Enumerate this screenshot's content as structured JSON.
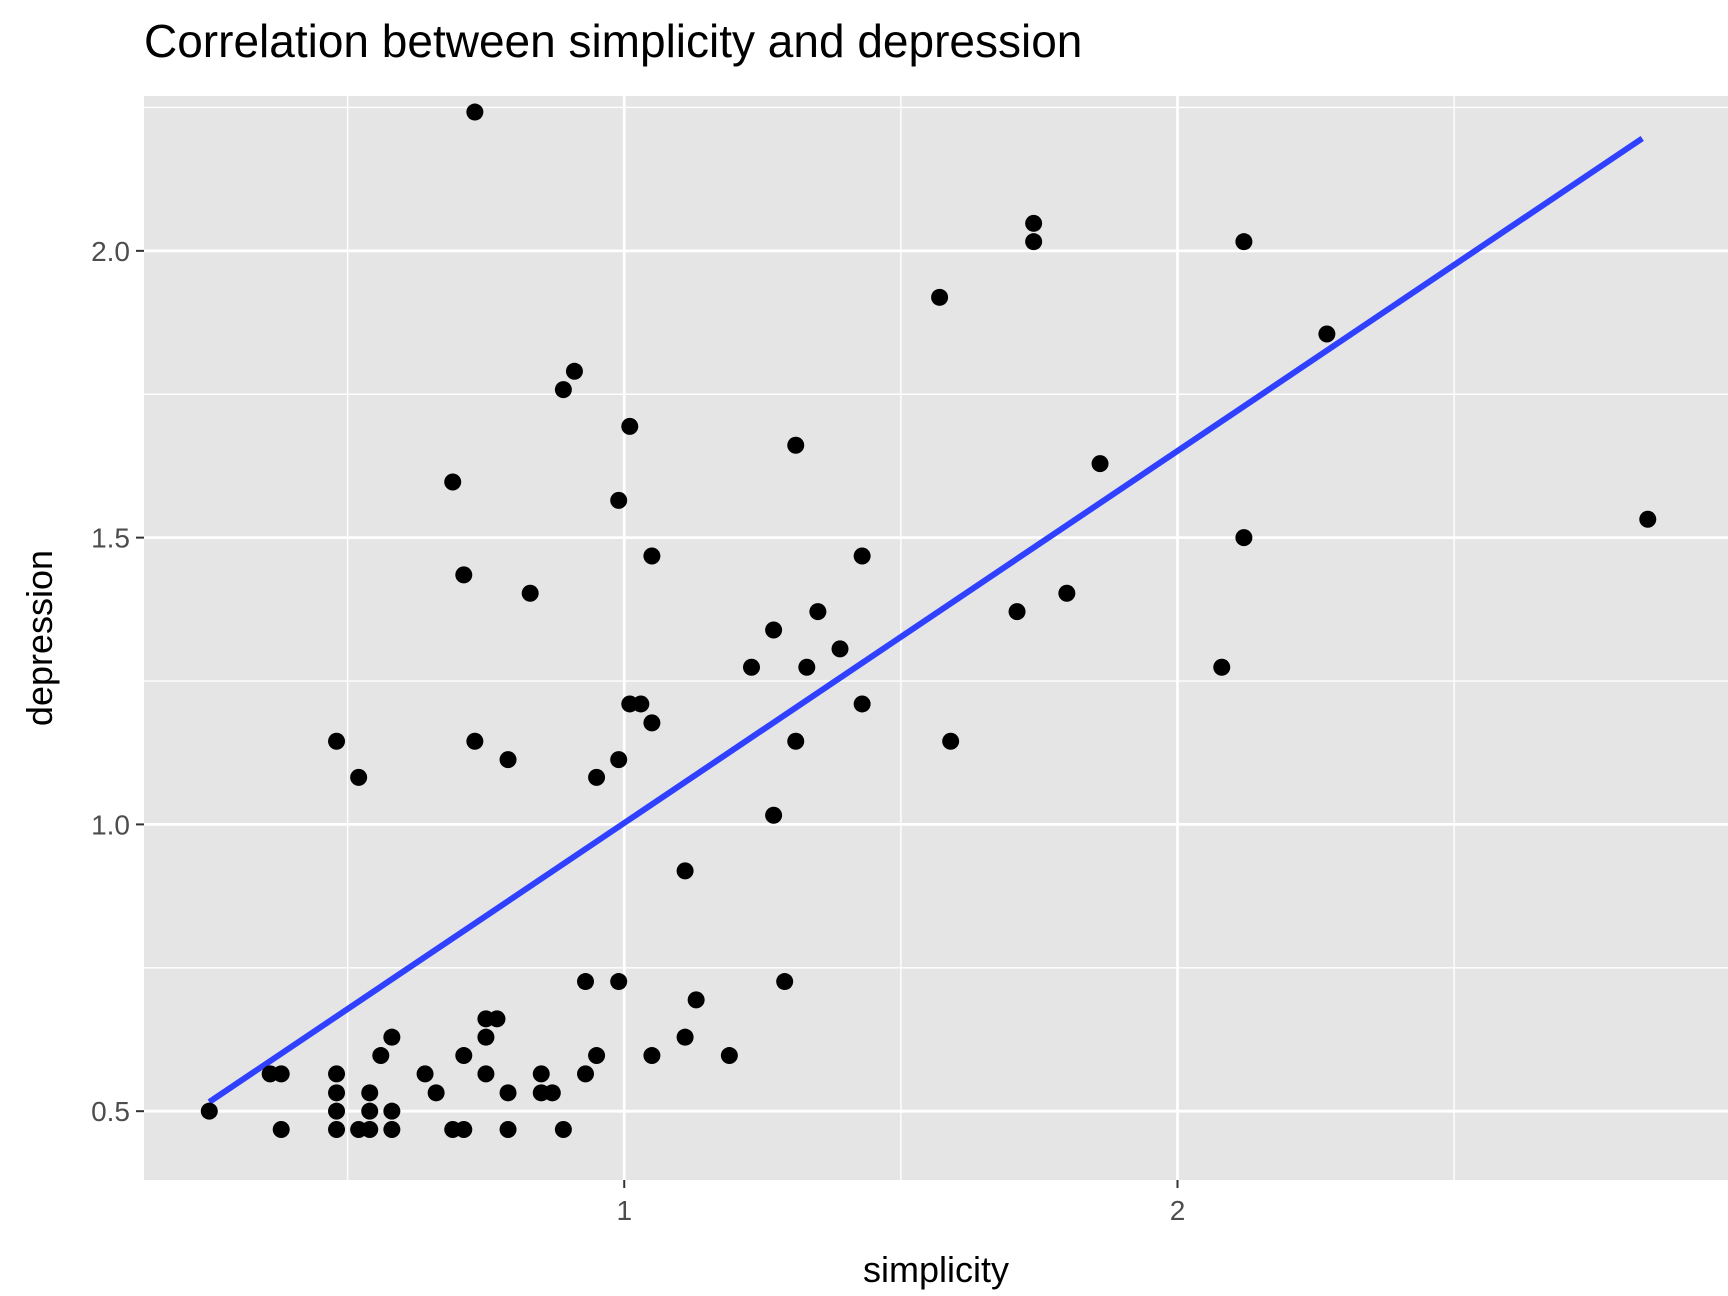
{
  "chart_data": {
    "type": "scatter",
    "title": "Correlation between simplicity and depression",
    "xlabel": "simplicity",
    "ylabel": "depression",
    "xlim": [
      0.132,
      2.995
    ],
    "ylim": [
      0.38,
      2.27
    ],
    "x_major_ticks": [
      1,
      2
    ],
    "x_minor_ticks": [
      0.5,
      1.5,
      2.5
    ],
    "x_tick_labels": [
      "1",
      "2"
    ],
    "y_major_ticks": [
      0.5,
      1.0,
      1.5,
      2.0
    ],
    "y_minor_ticks": [
      0.75,
      1.25,
      1.75,
      2.25
    ],
    "y_tick_labels": [
      "0.5",
      "1.0",
      "1.5",
      "2.0"
    ],
    "grid": true,
    "background_color": "#e5e5e5",
    "point_color": "#000000",
    "trend_line": {
      "color": "#3040ff",
      "x": [
        0.25,
        2.84
      ],
      "y": [
        0.516,
        2.196
      ]
    },
    "points": [
      [
        0.25,
        0.5
      ],
      [
        0.36,
        0.565
      ],
      [
        0.38,
        0.565
      ],
      [
        0.38,
        0.468
      ],
      [
        0.48,
        0.565
      ],
      [
        0.48,
        0.532
      ],
      [
        0.48,
        0.5
      ],
      [
        0.48,
        0.468
      ],
      [
        0.48,
        1.145
      ],
      [
        0.52,
        0.468
      ],
      [
        0.52,
        1.082
      ],
      [
        0.54,
        0.532
      ],
      [
        0.54,
        0.5
      ],
      [
        0.54,
        0.468
      ],
      [
        0.56,
        0.597
      ],
      [
        0.58,
        0.629
      ],
      [
        0.58,
        0.5
      ],
      [
        0.58,
        0.468
      ],
      [
        0.64,
        0.565
      ],
      [
        0.66,
        0.532
      ],
      [
        0.69,
        0.468
      ],
      [
        0.69,
        1.597
      ],
      [
        0.71,
        0.468
      ],
      [
        0.71,
        0.597
      ],
      [
        0.71,
        1.435
      ],
      [
        0.73,
        1.145
      ],
      [
        0.73,
        2.242
      ],
      [
        0.75,
        0.565
      ],
      [
        0.75,
        0.629
      ],
      [
        0.75,
        0.661
      ],
      [
        0.77,
        0.661
      ],
      [
        0.79,
        0.532
      ],
      [
        0.79,
        0.468
      ],
      [
        0.79,
        1.113
      ],
      [
        0.83,
        1.403
      ],
      [
        0.85,
        0.565
      ],
      [
        0.85,
        0.532
      ],
      [
        0.87,
        0.532
      ],
      [
        0.89,
        0.468
      ],
      [
        0.89,
        1.758
      ],
      [
        0.91,
        1.79
      ],
      [
        0.93,
        0.565
      ],
      [
        0.93,
        0.726
      ],
      [
        0.95,
        0.597
      ],
      [
        0.95,
        1.082
      ],
      [
        0.99,
        0.726
      ],
      [
        0.99,
        1.113
      ],
      [
        0.99,
        1.565
      ],
      [
        1.01,
        1.21
      ],
      [
        1.01,
        1.694
      ],
      [
        1.03,
        1.21
      ],
      [
        1.05,
        0.597
      ],
      [
        1.05,
        1.177
      ],
      [
        1.05,
        1.468
      ],
      [
        1.11,
        0.629
      ],
      [
        1.11,
        0.919
      ],
      [
        1.13,
        0.694
      ],
      [
        1.19,
        0.597
      ],
      [
        1.23,
        1.274
      ],
      [
        1.27,
        1.016
      ],
      [
        1.27,
        1.339
      ],
      [
        1.29,
        0.726
      ],
      [
        1.31,
        1.145
      ],
      [
        1.31,
        1.661
      ],
      [
        1.33,
        1.274
      ],
      [
        1.35,
        1.371
      ],
      [
        1.39,
        1.306
      ],
      [
        1.43,
        1.21
      ],
      [
        1.43,
        1.468
      ],
      [
        1.57,
        1.919
      ],
      [
        1.59,
        1.145
      ],
      [
        1.71,
        1.371
      ],
      [
        1.74,
        2.016
      ],
      [
        1.74,
        2.048
      ],
      [
        1.8,
        1.403
      ],
      [
        1.86,
        1.629
      ],
      [
        2.08,
        1.274
      ],
      [
        2.12,
        1.5
      ],
      [
        2.12,
        2.016
      ],
      [
        2.27,
        1.855
      ],
      [
        2.85,
        1.532
      ]
    ]
  }
}
